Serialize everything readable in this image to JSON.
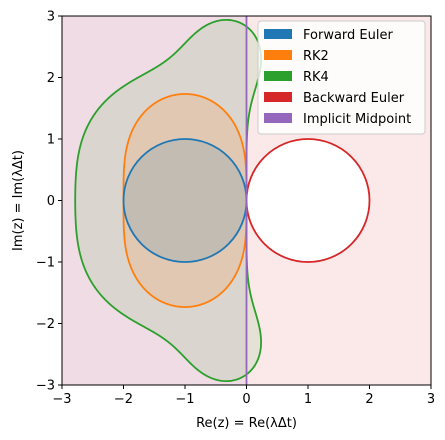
{
  "chart_data": {
    "type": "line",
    "title": "",
    "xlabel": "Re(z) = Re(λΔt)",
    "ylabel": "Im(z) = Im(λΔt)",
    "xlim": [
      -3,
      3
    ],
    "ylim": [
      -3,
      3
    ],
    "xticks": [
      "−3",
      "−2",
      "−1",
      "0",
      "1",
      "2",
      "3"
    ],
    "yticks": [
      "−3",
      "−2",
      "−1",
      "0",
      "1",
      "2",
      "3"
    ],
    "grid": false,
    "legend_position": "top-right",
    "series": [
      {
        "name": "Forward Euler",
        "color": "#1f77b4",
        "region": "disk",
        "center": [
          -1,
          0
        ],
        "radius": 1
      },
      {
        "name": "RK2",
        "color": "#ff7f0e",
        "region": "rk2"
      },
      {
        "name": "RK4",
        "color": "#2ca02c",
        "region": "rk4"
      },
      {
        "name": "Backward Euler",
        "color": "#d62728",
        "region": "disk-exterior",
        "center": [
          1,
          0
        ],
        "radius": 1
      },
      {
        "name": "Implicit Midpoint",
        "color": "#9467bd",
        "region": "left-half-plane",
        "boundary_x": 0
      }
    ]
  }
}
